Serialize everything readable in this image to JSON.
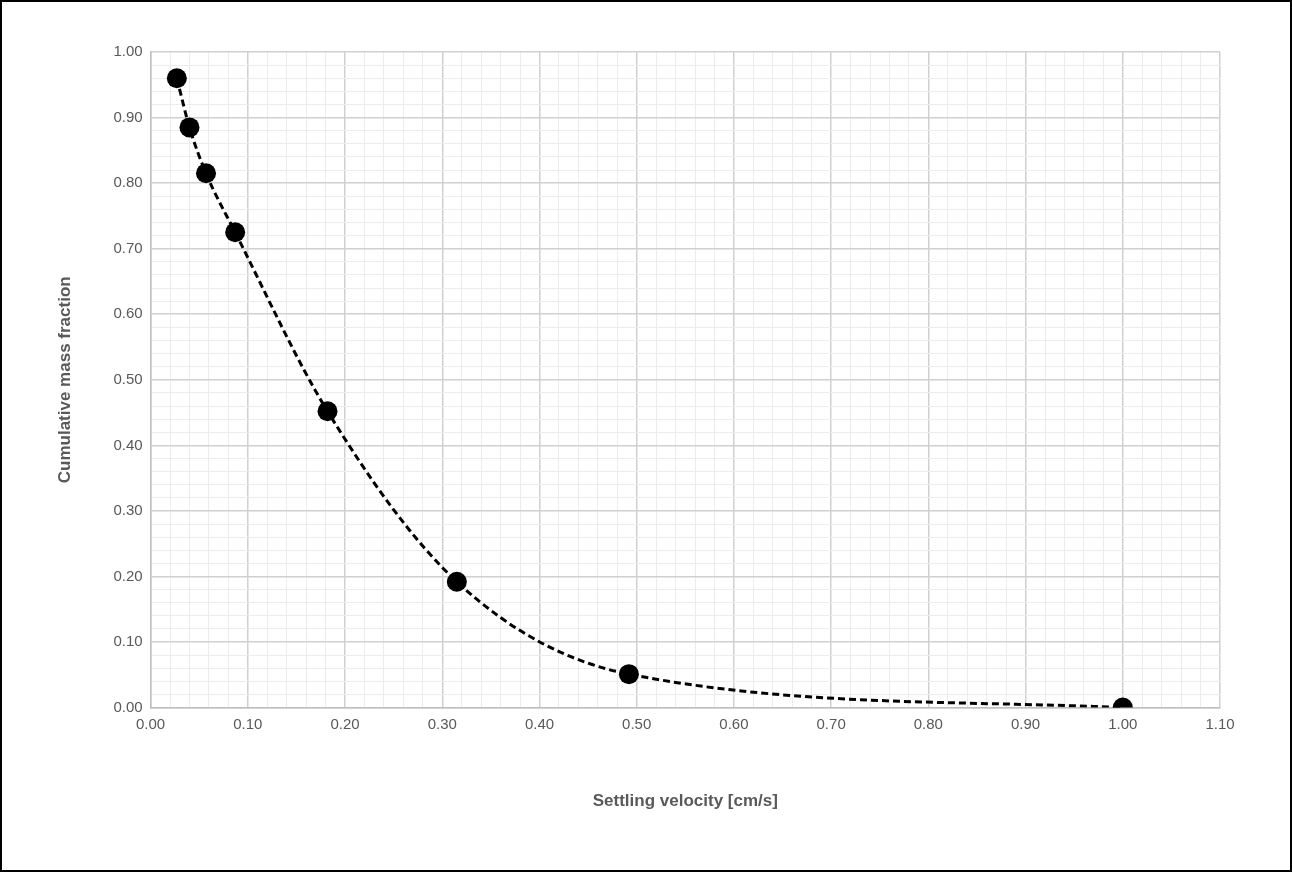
{
  "chart_data": {
    "type": "line",
    "xlabel": "Settling velocity [cm/s]",
    "ylabel": "Cumulative mass fraction",
    "x": [
      0.027,
      0.04,
      0.057,
      0.087,
      0.182,
      0.315,
      0.492,
      1.0
    ],
    "series": [
      {
        "color": "#000000",
        "values": [
          0.96,
          0.885,
          0.815,
          0.725,
          0.452,
          0.192,
          0.051,
          0.0
        ]
      }
    ],
    "marker": "circle",
    "line_style": "dashed",
    "grid": true,
    "legend": false,
    "xlim": [
      0,
      1.1
    ],
    "ylim": [
      0,
      1
    ],
    "xticks": [
      {
        "value": 0,
        "label": "0.00"
      },
      {
        "value": 0.02,
        "label": null
      },
      {
        "value": 0.04,
        "label": null
      },
      {
        "value": 0.06,
        "label": null
      },
      {
        "value": 0.08,
        "label": null
      },
      {
        "value": 0.1,
        "label": "0.10"
      },
      {
        "value": 0.12,
        "label": null
      },
      {
        "value": 0.14,
        "label": null
      },
      {
        "value": 0.16,
        "label": null
      },
      {
        "value": 0.18,
        "label": null
      },
      {
        "value": 0.2,
        "label": "0.20"
      },
      {
        "value": 0.22,
        "label": null
      },
      {
        "value": 0.24,
        "label": null
      },
      {
        "value": 0.26,
        "label": null
      },
      {
        "value": 0.28,
        "label": null
      },
      {
        "value": 0.3,
        "label": "0.30"
      },
      {
        "value": 0.32,
        "label": null
      },
      {
        "value": 0.34,
        "label": null
      },
      {
        "value": 0.36,
        "label": null
      },
      {
        "value": 0.38,
        "label": null
      },
      {
        "value": 0.4,
        "label": "0.40"
      },
      {
        "value": 0.42,
        "label": null
      },
      {
        "value": 0.44,
        "label": null
      },
      {
        "value": 0.46,
        "label": null
      },
      {
        "value": 0.48,
        "label": null
      },
      {
        "value": 0.5,
        "label": "0.50"
      },
      {
        "value": 0.52,
        "label": null
      },
      {
        "value": 0.54,
        "label": null
      },
      {
        "value": 0.56,
        "label": null
      },
      {
        "value": 0.58,
        "label": null
      },
      {
        "value": 0.6,
        "label": "0.60"
      },
      {
        "value": 0.62,
        "label": null
      },
      {
        "value": 0.64,
        "label": null
      },
      {
        "value": 0.66,
        "label": null
      },
      {
        "value": 0.68,
        "label": null
      },
      {
        "value": 0.7,
        "label": "0.70"
      },
      {
        "value": 0.72,
        "label": null
      },
      {
        "value": 0.74,
        "label": null
      },
      {
        "value": 0.76,
        "label": null
      },
      {
        "value": 0.78,
        "label": null
      },
      {
        "value": 0.8,
        "label": "0.80"
      },
      {
        "value": 0.82,
        "label": null
      },
      {
        "value": 0.84,
        "label": null
      },
      {
        "value": 0.86,
        "label": null
      },
      {
        "value": 0.88,
        "label": null
      },
      {
        "value": 0.9,
        "label": "0.90"
      },
      {
        "value": 0.92,
        "label": null
      },
      {
        "value": 0.94,
        "label": null
      },
      {
        "value": 0.96,
        "label": null
      },
      {
        "value": 0.98,
        "label": null
      },
      {
        "value": 1.0,
        "label": "1.00"
      },
      {
        "value": 1.02,
        "label": null
      },
      {
        "value": 1.04,
        "label": null
      },
      {
        "value": 1.06,
        "label": null
      },
      {
        "value": 1.08,
        "label": null
      },
      {
        "value": 1.1,
        "label": "1.10"
      }
    ],
    "yticks": [
      {
        "value": 0,
        "label": "0.00"
      },
      {
        "value": 0.02,
        "label": null
      },
      {
        "value": 0.04,
        "label": null
      },
      {
        "value": 0.06,
        "label": null
      },
      {
        "value": 0.08,
        "label": null
      },
      {
        "value": 0.1,
        "label": "0.10"
      },
      {
        "value": 0.12,
        "label": null
      },
      {
        "value": 0.14,
        "label": null
      },
      {
        "value": 0.16,
        "label": null
      },
      {
        "value": 0.18,
        "label": null
      },
      {
        "value": 0.2,
        "label": "0.20"
      },
      {
        "value": 0.22,
        "label": null
      },
      {
        "value": 0.24,
        "label": null
      },
      {
        "value": 0.26,
        "label": null
      },
      {
        "value": 0.28,
        "label": null
      },
      {
        "value": 0.3,
        "label": "0.30"
      },
      {
        "value": 0.32,
        "label": null
      },
      {
        "value": 0.34,
        "label": null
      },
      {
        "value": 0.36,
        "label": null
      },
      {
        "value": 0.38,
        "label": null
      },
      {
        "value": 0.4,
        "label": "0.40"
      },
      {
        "value": 0.42,
        "label": null
      },
      {
        "value": 0.44,
        "label": null
      },
      {
        "value": 0.46,
        "label": null
      },
      {
        "value": 0.48,
        "label": null
      },
      {
        "value": 0.5,
        "label": "0.50"
      },
      {
        "value": 0.52,
        "label": null
      },
      {
        "value": 0.54,
        "label": null
      },
      {
        "value": 0.56,
        "label": null
      },
      {
        "value": 0.58,
        "label": null
      },
      {
        "value": 0.6,
        "label": "0.60"
      },
      {
        "value": 0.62,
        "label": null
      },
      {
        "value": 0.64,
        "label": null
      },
      {
        "value": 0.66,
        "label": null
      },
      {
        "value": 0.68,
        "label": null
      },
      {
        "value": 0.7,
        "label": "0.70"
      },
      {
        "value": 0.72,
        "label": null
      },
      {
        "value": 0.74,
        "label": null
      },
      {
        "value": 0.76,
        "label": null
      },
      {
        "value": 0.78,
        "label": null
      },
      {
        "value": 0.8,
        "label": "0.80"
      },
      {
        "value": 0.82,
        "label": null
      },
      {
        "value": 0.84,
        "label": null
      },
      {
        "value": 0.86,
        "label": null
      },
      {
        "value": 0.88,
        "label": null
      },
      {
        "value": 0.9,
        "label": "0.90"
      },
      {
        "value": 0.92,
        "label": null
      },
      {
        "value": 0.94,
        "label": null
      },
      {
        "value": 0.96,
        "label": null
      },
      {
        "value": 0.98,
        "label": null
      },
      {
        "value": 1.0,
        "label": "1.00"
      }
    ]
  }
}
